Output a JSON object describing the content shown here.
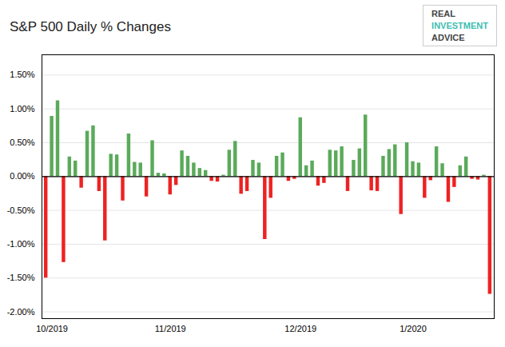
{
  "chart_data": {
    "type": "bar",
    "title": "S&P 500 Daily % Changes",
    "categories": [
      null,
      "10/2019",
      null,
      null,
      null,
      null,
      null,
      null,
      null,
      null,
      null,
      null,
      null,
      null,
      null,
      null,
      null,
      null,
      null,
      null,
      null,
      "11/2019",
      null,
      null,
      null,
      null,
      null,
      null,
      null,
      null,
      null,
      null,
      null,
      null,
      null,
      null,
      null,
      null,
      null,
      null,
      null,
      null,
      null,
      "12/2019",
      null,
      null,
      null,
      null,
      null,
      null,
      null,
      null,
      null,
      null,
      null,
      null,
      null,
      null,
      null,
      null,
      null,
      null,
      "1/2020",
      null,
      null,
      null,
      null,
      null,
      null,
      null,
      null,
      null,
      null,
      null,
      null,
      null
    ],
    "values": [
      -0.015,
      0.0089,
      0.0112,
      -0.0127,
      0.0029,
      0.0023,
      -0.0017,
      0.0067,
      0.0075,
      -0.0022,
      -0.0095,
      0.0033,
      0.0032,
      -0.0036,
      0.0063,
      0.0021,
      0.002,
      -0.003,
      0.0053,
      0.0005,
      0.0004,
      -0.0027,
      -0.0013,
      0.0038,
      0.003,
      0.002,
      0.0012,
      0.0009,
      -0.0007,
      -0.0008,
      0.0002,
      0.0039,
      0.0052,
      -0.0026,
      -0.0022,
      0.0024,
      0.002,
      -0.0093,
      -0.0032,
      0.003,
      0.0035,
      -0.0007,
      -0.0004,
      0.0087,
      0.0016,
      0.0023,
      -0.0014,
      -0.001,
      0.0039,
      0.0038,
      0.0044,
      -0.0022,
      0.0024,
      0.0041,
      0.0091,
      -0.0021,
      -0.0022,
      0.003,
      0.004,
      0.0047,
      -0.0056,
      0.005,
      0.0022,
      0.002,
      -0.0032,
      -0.0006,
      0.0044,
      0.0019,
      -0.0038,
      -0.0016,
      0.0016,
      0.0029,
      -0.0004,
      -0.0005,
      0.0002,
      -0.0174
    ],
    "colors": [
      "#ee2222",
      "#5aaa5a",
      "#5aaa5a",
      "#ee2222",
      "#5aaa5a",
      "#5aaa5a",
      "#ee2222",
      "#5aaa5a",
      "#5aaa5a",
      "#ee2222",
      "#ee2222",
      "#5aaa5a",
      "#5aaa5a",
      "#ee2222",
      "#5aaa5a",
      "#5aaa5a",
      "#5aaa5a",
      "#ee2222",
      "#5aaa5a",
      "#5aaa5a",
      "#5aaa5a",
      "#ee2222",
      "#ee2222",
      "#5aaa5a",
      "#5aaa5a",
      "#5aaa5a",
      "#5aaa5a",
      "#5aaa5a",
      "#ee2222",
      "#ee2222",
      "#5aaa5a",
      "#5aaa5a",
      "#5aaa5a",
      "#ee2222",
      "#ee2222",
      "#5aaa5a",
      "#5aaa5a",
      "#ee2222",
      "#ee2222",
      "#5aaa5a",
      "#5aaa5a",
      "#ee2222",
      "#ee2222",
      "#5aaa5a",
      "#5aaa5a",
      "#5aaa5a",
      "#ee2222",
      "#ee2222",
      "#5aaa5a",
      "#5aaa5a",
      "#5aaa5a",
      "#ee2222",
      "#5aaa5a",
      "#5aaa5a",
      "#5aaa5a",
      "#ee2222",
      "#ee2222",
      "#5aaa5a",
      "#5aaa5a",
      "#5aaa5a",
      "#ee2222",
      "#5aaa5a",
      "#5aaa5a",
      "#5aaa5a",
      "#ee2222",
      "#ee2222",
      "#5aaa5a",
      "#5aaa5a",
      "#ee2222",
      "#ee2222",
      "#5aaa5a",
      "#5aaa5a",
      "#ee2222",
      "#ee2222",
      "#5aaa5a",
      "#ee2222"
    ],
    "ylim": [
      -0.021,
      0.018
    ],
    "yticks": [
      {
        "value": -0.02,
        "label": "-2.00%"
      },
      {
        "value": -0.015,
        "label": "-1.50%"
      },
      {
        "value": -0.01,
        "label": "-1.00%"
      },
      {
        "value": -0.005,
        "label": "-0.50%"
      },
      {
        "value": 0.0,
        "label": "0.00%"
      },
      {
        "value": 0.005,
        "label": "0.50%"
      },
      {
        "value": 0.01,
        "label": "1.00%"
      },
      {
        "value": 0.015,
        "label": "1.50%"
      }
    ],
    "grid": true,
    "annotations": [
      {
        "text": "REAL",
        "color": "#444444"
      },
      {
        "text": "INVESTMENT",
        "color": "#3dbdb0"
      },
      {
        "text": "ADVICE",
        "color": "#444444"
      }
    ]
  }
}
